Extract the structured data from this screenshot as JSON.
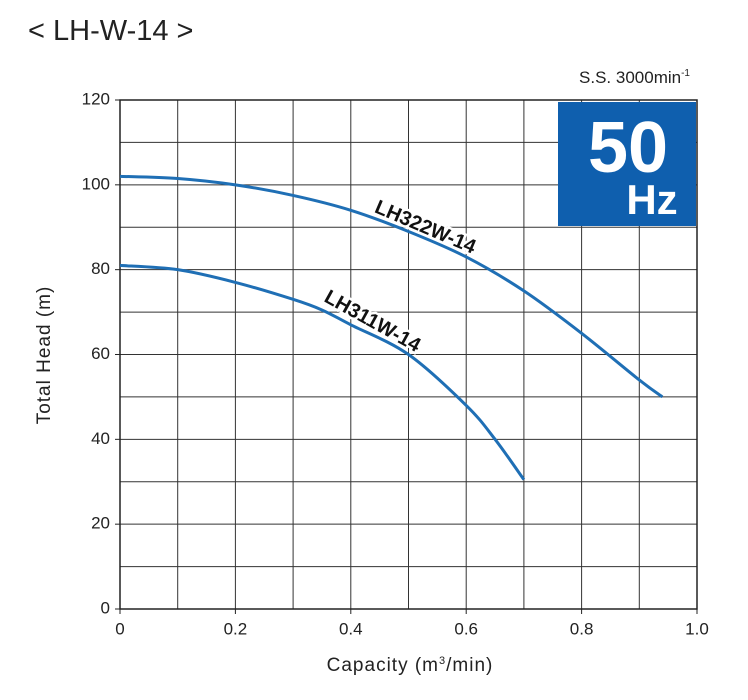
{
  "chart_data": {
    "type": "line",
    "title": "< LH-W-14 >",
    "speed_label": "S.S. 3000min",
    "speed_exponent": "-1",
    "badge_value": "50",
    "badge_unit": "Hz",
    "badge_color": "#0f5fae",
    "xlabel": [
      "Capacity (m",
      "3",
      "/min)"
    ],
    "ylabel": "Total Head (m)",
    "xlim": [
      0,
      1
    ],
    "ylim": [
      0,
      120
    ],
    "xticks": [
      0,
      0.2,
      0.4,
      0.6,
      0.8,
      {
        "value": 1,
        "label": "1.0"
      }
    ],
    "yticks": [
      0,
      20,
      40,
      60,
      80,
      100,
      120
    ],
    "xgrid": [
      0.1,
      0.2,
      0.3,
      0.4,
      0.5,
      0.6,
      0.7,
      0.8,
      0.9
    ],
    "ygrid": [
      10,
      20,
      30,
      40,
      50,
      60,
      70,
      80,
      90,
      100,
      110
    ],
    "grid": true,
    "series": [
      {
        "name": "LH322W-14",
        "color": "#1f6fb5",
        "x": [
          0,
          0.1,
          0.2,
          0.3,
          0.4,
          0.5,
          0.6,
          0.7,
          0.8,
          0.9,
          0.94
        ],
        "values": [
          102,
          101.5,
          100,
          97.5,
          94,
          89,
          83,
          75,
          65,
          54,
          50
        ]
      },
      {
        "name": "LH311W-14",
        "color": "#1f6fb5",
        "x": [
          0,
          0.1,
          0.2,
          0.3,
          0.35,
          0.4,
          0.5,
          0.6,
          0.65,
          0.7
        ],
        "values": [
          81,
          80,
          77,
          73,
          70.5,
          67,
          60,
          48,
          40,
          30.5
        ]
      }
    ]
  }
}
